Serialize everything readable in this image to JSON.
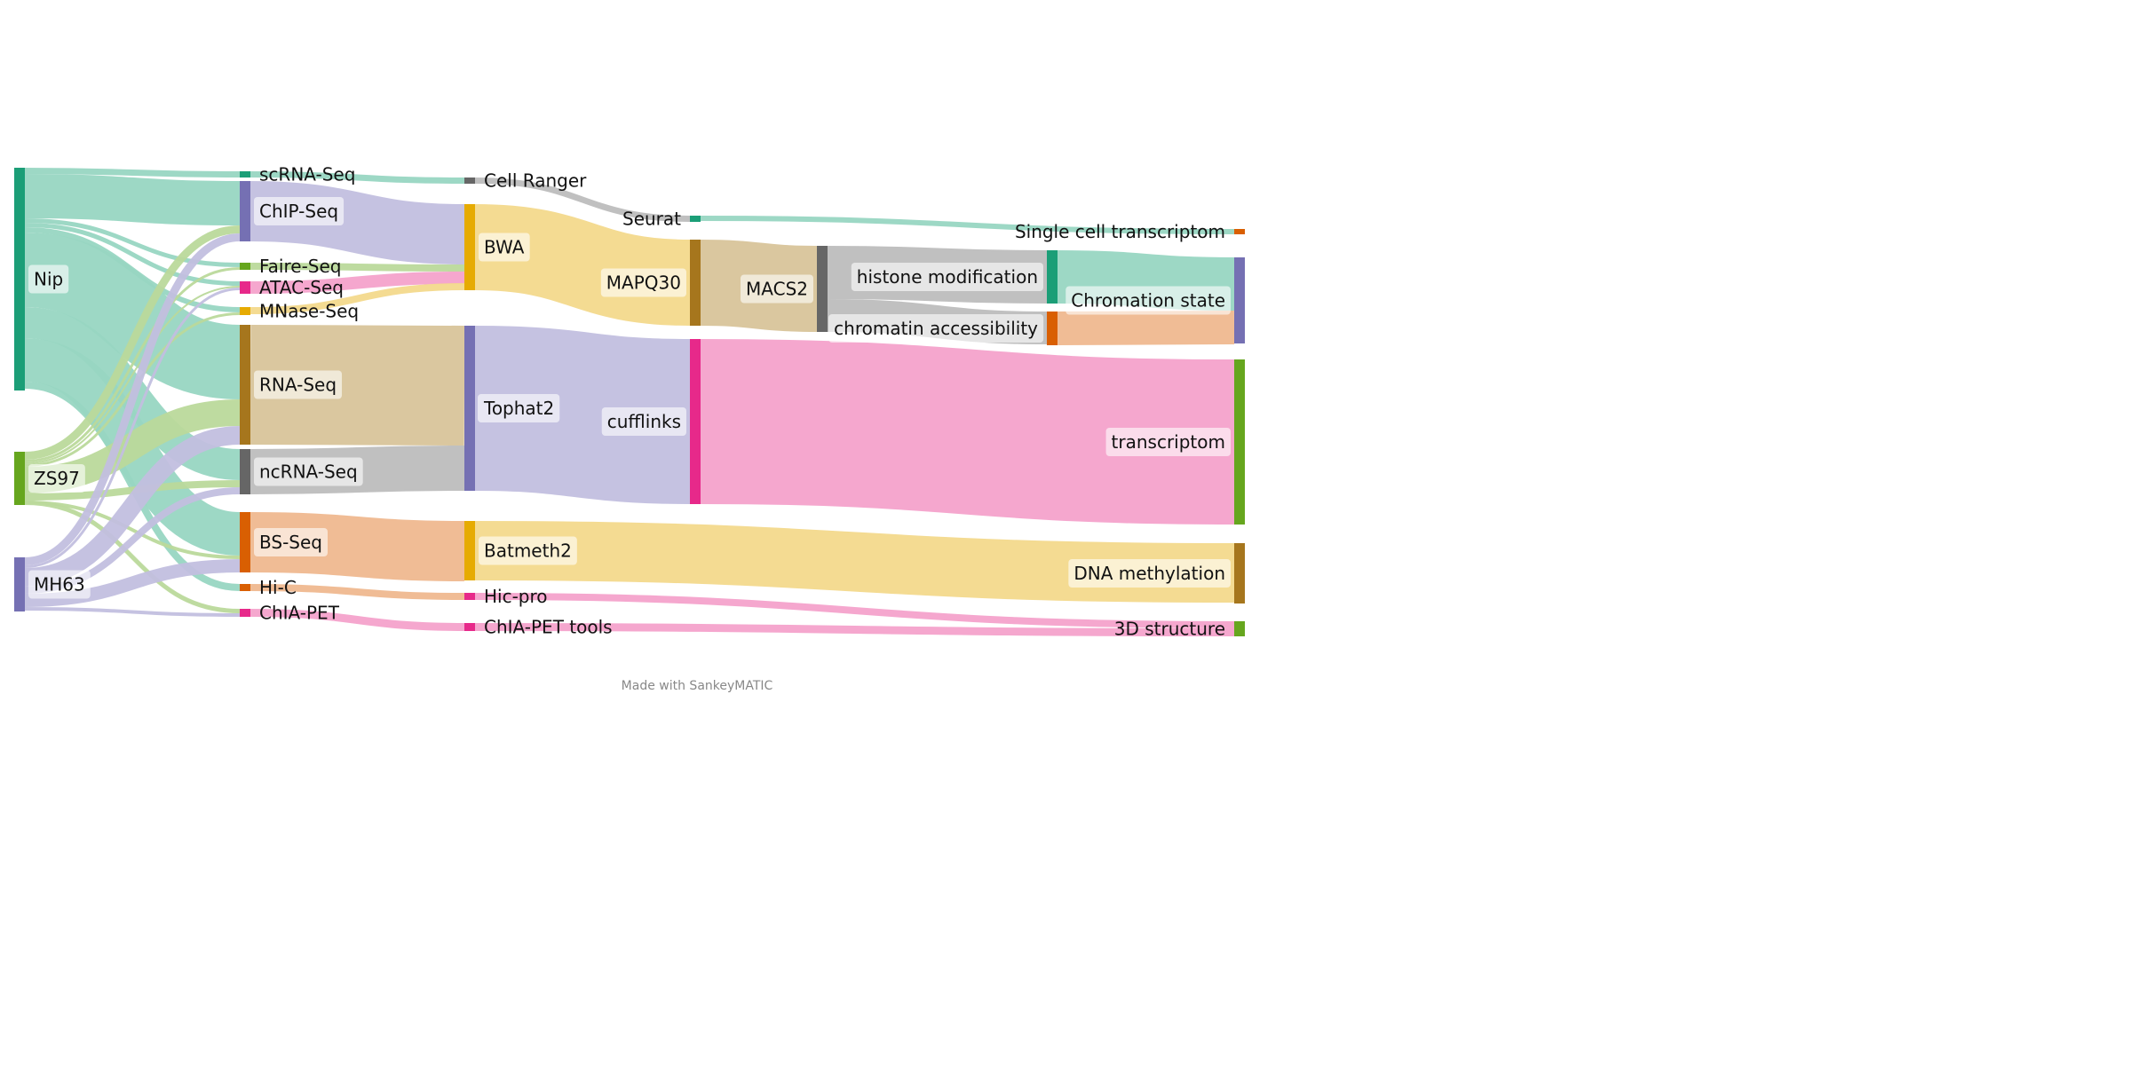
{
  "credit": "Made with SankeyMATIC",
  "nodes": [
    {
      "id": "Nip",
      "label": "Nip",
      "color": "#1b9e77",
      "col": 0,
      "y0": 189,
      "y1": 440,
      "labelSide": "right",
      "labelBg": true
    },
    {
      "id": "ZS97",
      "label": "ZS97",
      "color": "#66a61e",
      "col": 0,
      "y0": 509,
      "y1": 569,
      "labelSide": "right",
      "labelBg": true
    },
    {
      "id": "MH63",
      "label": "MH63",
      "color": "#7570b3",
      "col": 0,
      "y0": 628,
      "y1": 689,
      "labelSide": "right",
      "labelBg": true
    },
    {
      "id": "scRNA-Seq",
      "label": "scRNA-Seq",
      "color": "#1b9e77",
      "col": 1,
      "y0": 193,
      "y1": 200,
      "labelSide": "right",
      "labelBg": false
    },
    {
      "id": "ChIP-Seq",
      "label": "ChIP-Seq",
      "color": "#7570b3",
      "col": 1,
      "y0": 204,
      "y1": 272,
      "labelSide": "right",
      "labelBg": true
    },
    {
      "id": "Faire-Seq",
      "label": "Faire-Seq",
      "color": "#66a61e",
      "col": 1,
      "y0": 296,
      "y1": 304,
      "labelSide": "right",
      "labelBg": false
    },
    {
      "id": "ATAC-Seq",
      "label": "ATAC-Seq",
      "color": "#e7298a",
      "col": 1,
      "y0": 317,
      "y1": 331,
      "labelSide": "right",
      "labelBg": false
    },
    {
      "id": "MNase-Seq",
      "label": "MNase-Seq",
      "color": "#e6ab02",
      "col": 1,
      "y0": 346,
      "y1": 355,
      "labelSide": "right",
      "labelBg": false
    },
    {
      "id": "RNA-Seq",
      "label": "RNA-Seq",
      "color": "#a6761d",
      "col": 1,
      "y0": 366,
      "y1": 501,
      "labelSide": "right",
      "labelBg": true
    },
    {
      "id": "ncRNA-Seq",
      "label": "ncRNA-Seq",
      "color": "#666666",
      "col": 1,
      "y0": 506,
      "y1": 557,
      "labelSide": "right",
      "labelBg": true
    },
    {
      "id": "BS-Seq",
      "label": "BS-Seq",
      "color": "#d95f02",
      "col": 1,
      "y0": 577,
      "y1": 645,
      "labelSide": "right",
      "labelBg": true
    },
    {
      "id": "Hi-C",
      "label": "Hi-C",
      "color": "#d95f02",
      "col": 1,
      "y0": 658,
      "y1": 666,
      "labelSide": "right",
      "labelBg": false
    },
    {
      "id": "ChIA-PET",
      "label": "ChIA-PET",
      "color": "#e7298a",
      "col": 1,
      "y0": 686,
      "y1": 695,
      "labelSide": "right",
      "labelBg": false
    },
    {
      "id": "Cell Ranger",
      "label": "Cell Ranger",
      "color": "#666666",
      "col": 2,
      "y0": 200,
      "y1": 207,
      "labelSide": "right",
      "labelBg": false
    },
    {
      "id": "BWA",
      "label": "BWA",
      "color": "#e6ab02",
      "col": 2,
      "y0": 230,
      "y1": 327,
      "labelSide": "right",
      "labelBg": true
    },
    {
      "id": "Tophat2",
      "label": "Tophat2",
      "color": "#7570b3",
      "col": 2,
      "y0": 367,
      "y1": 553,
      "labelSide": "right",
      "labelBg": true
    },
    {
      "id": "Batmeth2",
      "label": "Batmeth2",
      "color": "#e6ab02",
      "col": 2,
      "y0": 587,
      "y1": 654,
      "labelSide": "right",
      "labelBg": true
    },
    {
      "id": "Hic-pro",
      "label": "Hic-pro",
      "color": "#e7298a",
      "col": 2,
      "y0": 668,
      "y1": 676,
      "labelSide": "right",
      "labelBg": false
    },
    {
      "id": "ChIA-PET tools",
      "label": "ChIA-PET tools",
      "color": "#e7298a",
      "col": 2,
      "y0": 702,
      "y1": 711,
      "labelSide": "right",
      "labelBg": false
    },
    {
      "id": "Seurat",
      "label": "Seurat",
      "color": "#1b9e77",
      "col": 3,
      "y0": 243,
      "y1": 250,
      "labelSide": "left",
      "labelBg": false
    },
    {
      "id": "MAPQ30",
      "label": "MAPQ30",
      "color": "#a6761d",
      "col": 3,
      "y0": 270,
      "y1": 367,
      "labelSide": "left",
      "labelBg": true
    },
    {
      "id": "cufflinks",
      "label": "cufflinks",
      "color": "#e7298a",
      "col": 3,
      "y0": 382,
      "y1": 568,
      "labelSide": "left",
      "labelBg": true
    },
    {
      "id": "MACS2",
      "label": "MACS2",
      "color": "#666666",
      "col": 4,
      "y0": 277,
      "y1": 374,
      "labelSide": "left",
      "labelBg": true
    },
    {
      "id": "histone modification",
      "label": "histone modification",
      "color": "#1b9e77",
      "col": 5,
      "y0": 282,
      "y1": 342,
      "labelSide": "left",
      "labelBg": true
    },
    {
      "id": "chromatin accessibility",
      "label": "chromatin accessibility",
      "color": "#d95f02",
      "col": 5,
      "y0": 351,
      "y1": 389,
      "labelSide": "left",
      "labelBg": true
    },
    {
      "id": "Single cell transcriptom",
      "label": "Single cell transcriptom",
      "color": "#d95f02",
      "col": 6,
      "y0": 258,
      "y1": 264,
      "labelSide": "left",
      "labelBg": false
    },
    {
      "id": "Chromation state",
      "label": "Chromation state",
      "color": "#7570b3",
      "col": 6,
      "y0": 290,
      "y1": 387,
      "labelSide": "left",
      "labelBg": true
    },
    {
      "id": "transcriptom",
      "label": "transcriptom",
      "color": "#66a61e",
      "col": 6,
      "y0": 405,
      "y1": 591,
      "labelSide": "left",
      "labelBg": true
    },
    {
      "id": "DNA methylation",
      "label": "DNA methylation",
      "color": "#a6761d",
      "col": 6,
      "y0": 612,
      "y1": 680,
      "labelSide": "left",
      "labelBg": true
    },
    {
      "id": "3D structure",
      "label": "3D structure",
      "color": "#66a61e",
      "col": 6,
      "y0": 700,
      "y1": 717,
      "labelSide": "left",
      "labelBg": false
    }
  ],
  "flows": [
    {
      "source": "Nip",
      "target": "scRNA-Seq",
      "value": 7,
      "s0": 189,
      "t0": 193
    },
    {
      "source": "Nip",
      "target": "ChIP-Seq",
      "value": 50,
      "s0": 196,
      "t0": 204
    },
    {
      "source": "Nip",
      "target": "Faire-Seq",
      "value": 5,
      "s0": 246,
      "t0": 296
    },
    {
      "source": "Nip",
      "target": "ATAC-Seq",
      "value": 5,
      "s0": 251,
      "t0": 317
    },
    {
      "source": "Nip",
      "target": "MNase-Seq",
      "value": 6,
      "s0": 256,
      "t0": 346
    },
    {
      "source": "Nip",
      "target": "RNA-Seq",
      "value": 84,
      "s0": 262,
      "t0": 366
    },
    {
      "source": "Nip",
      "target": "ncRNA-Seq",
      "value": 35,
      "s0": 346,
      "t0": 506
    },
    {
      "source": "Nip",
      "target": "BS-Seq",
      "value": 49,
      "s0": 381,
      "t0": 577
    },
    {
      "source": "Nip",
      "target": "Hi-C",
      "value": 8,
      "s0": 430,
      "t0": 658
    },
    {
      "source": "ZS97",
      "target": "ChIP-Seq",
      "value": 9,
      "s0": 509,
      "t0": 254
    },
    {
      "source": "ZS97",
      "target": "Faire-Seq",
      "value": 3,
      "s0": 518,
      "t0": 301
    },
    {
      "source": "ZS97",
      "target": "ATAC-Seq",
      "value": 2,
      "s0": 521,
      "t0": 322
    },
    {
      "source": "ZS97",
      "target": "MNase-Seq",
      "value": 3,
      "s0": 523,
      "t0": 352
    },
    {
      "source": "ZS97",
      "target": "RNA-Seq",
      "value": 30,
      "s0": 526,
      "t0": 450
    },
    {
      "source": "ZS97",
      "target": "ncRNA-Seq",
      "value": 8,
      "s0": 556,
      "t0": 541
    },
    {
      "source": "ZS97",
      "target": "BS-Seq",
      "value": 4,
      "s0": 564,
      "t0": 626
    },
    {
      "source": "ZS97",
      "target": "ChIA-PET",
      "value": 5,
      "s0": 564,
      "t0": 686
    },
    {
      "source": "MH63",
      "target": "ChIP-Seq",
      "value": 9,
      "s0": 628,
      "t0": 263
    },
    {
      "source": "MH63",
      "target": "ATAC-Seq",
      "value": 3,
      "s0": 637,
      "t0": 324
    },
    {
      "source": "MH63",
      "target": "RNA-Seq",
      "value": 21,
      "s0": 640,
      "t0": 480
    },
    {
      "source": "MH63",
      "target": "ncRNA-Seq",
      "value": 8,
      "s0": 661,
      "t0": 549
    },
    {
      "source": "MH63",
      "target": "BS-Seq",
      "value": 15,
      "s0": 669,
      "t0": 630
    },
    {
      "source": "MH63",
      "target": "ChIA-PET",
      "value": 4,
      "s0": 684,
      "t0": 691
    },
    {
      "source": "scRNA-Seq",
      "target": "Cell Ranger",
      "value": 7,
      "s0": 193,
      "t0": 200
    },
    {
      "source": "ChIP-Seq",
      "target": "BWA",
      "value": 68,
      "s0": 204,
      "t0": 230
    },
    {
      "source": "Faire-Seq",
      "target": "BWA",
      "value": 8,
      "s0": 296,
      "t0": 298
    },
    {
      "source": "ATAC-Seq",
      "target": "BWA",
      "value": 14,
      "s0": 317,
      "t0": 306
    },
    {
      "source": "MNase-Seq",
      "target": "BWA",
      "value": 8,
      "s0": 346,
      "t0": 319
    },
    {
      "source": "RNA-Seq",
      "target": "Tophat2",
      "value": 135,
      "s0": 366,
      "t0": 367
    },
    {
      "source": "ncRNA-Seq",
      "target": "Tophat2",
      "value": 51,
      "s0": 506,
      "t0": 502
    },
    {
      "source": "BS-Seq",
      "target": "Batmeth2",
      "value": 68,
      "s0": 577,
      "t0": 587
    },
    {
      "source": "Hi-C",
      "target": "Hic-pro",
      "value": 8,
      "s0": 658,
      "t0": 668
    },
    {
      "source": "ChIA-PET",
      "target": "ChIA-PET tools",
      "value": 9,
      "s0": 686,
      "t0": 702
    },
    {
      "source": "Cell Ranger",
      "target": "Seurat",
      "value": 7,
      "s0": 200,
      "t0": 243
    },
    {
      "source": "BWA",
      "target": "MAPQ30",
      "value": 97,
      "s0": 230,
      "t0": 270
    },
    {
      "source": "Tophat2",
      "target": "cufflinks",
      "value": 186,
      "s0": 367,
      "t0": 382
    },
    {
      "source": "Batmeth2",
      "target": "DNA methylation",
      "value": 67,
      "s0": 587,
      "t0": 612
    },
    {
      "source": "Hic-pro",
      "target": "3D structure",
      "value": 8,
      "s0": 668,
      "t0": 700
    },
    {
      "source": "ChIA-PET tools",
      "target": "3D structure",
      "value": 9,
      "s0": 702,
      "t0": 708
    },
    {
      "source": "Seurat",
      "target": "Single cell transcriptom",
      "value": 6,
      "s0": 243,
      "t0": 258
    },
    {
      "source": "MAPQ30",
      "target": "MACS2",
      "value": 97,
      "s0": 270,
      "t0": 277
    },
    {
      "source": "cufflinks",
      "target": "transcriptom",
      "value": 186,
      "s0": 382,
      "t0": 405
    },
    {
      "source": "MACS2",
      "target": "histone modification",
      "value": 60,
      "s0": 277,
      "t0": 282
    },
    {
      "source": "MACS2",
      "target": "chromatin accessibility",
      "value": 37,
      "s0": 337,
      "t0": 351
    },
    {
      "source": "histone modification",
      "target": "Chromation state",
      "value": 60,
      "s0": 282,
      "t0": 290
    },
    {
      "source": "chromatin accessibility",
      "target": "Chromation state",
      "value": 38,
      "s0": 351,
      "t0": 350
    }
  ]
}
